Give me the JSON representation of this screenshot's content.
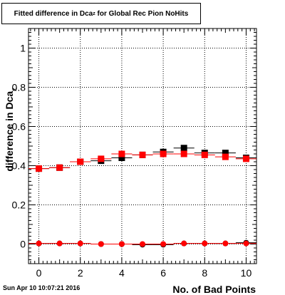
{
  "chart_data": {
    "type": "scatter",
    "title_main": "Fitted difference in Dca",
    "title_sub": "z",
    "title_rest": " for Global Rec Pion NoHits",
    "xlabel": "No. of Bad Points",
    "ylabel": "difference in Dca",
    "ylabel_sub": "z",
    "xlim": [
      -0.5,
      10.5
    ],
    "ylim": [
      -0.1,
      1.1
    ],
    "xticks": [
      "0",
      "2",
      "4",
      "6",
      "8",
      "10"
    ],
    "yticks": [
      "0",
      "0.2",
      "0.4",
      "0.6",
      "0.8",
      "1"
    ],
    "grid": true,
    "series": [
      {
        "color": "#000000",
        "marker": "square",
        "x": [
          0,
          1,
          2,
          3,
          4,
          5,
          6,
          7,
          8,
          9,
          10
        ],
        "y": [
          0.385,
          0.39,
          0.42,
          0.425,
          0.44,
          0.455,
          0.47,
          0.49,
          0.465,
          0.465,
          0.44
        ]
      },
      {
        "color": "#ff0000",
        "marker": "square",
        "x": [
          0,
          1,
          2,
          3,
          4,
          5,
          6,
          7,
          8,
          9,
          10
        ],
        "y": [
          0.385,
          0.39,
          0.42,
          0.435,
          0.46,
          0.455,
          0.46,
          0.46,
          0.455,
          0.445,
          0.435
        ]
      },
      {
        "color": "#000000",
        "marker": "circle",
        "x": [
          0,
          1,
          2,
          3,
          4,
          5,
          6,
          7,
          8,
          9,
          10
        ],
        "y": [
          0.003,
          0.003,
          0.003,
          0.0,
          0.0,
          -0.003,
          -0.003,
          0.003,
          0.003,
          0.003,
          0.007
        ]
      },
      {
        "color": "#ff0000",
        "marker": "circle",
        "x": [
          0,
          1,
          2,
          3,
          4,
          5,
          6,
          7,
          8,
          9,
          10
        ],
        "y": [
          0.003,
          0.003,
          0.003,
          0.0,
          0.0,
          0.0,
          0.0,
          0.003,
          0.003,
          0.003,
          0.003
        ]
      }
    ]
  },
  "footer": "Sun Apr 10 10:07:21 2016"
}
